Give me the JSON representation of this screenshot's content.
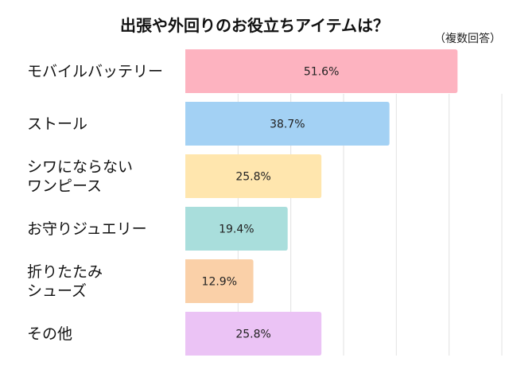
{
  "chart_data": {
    "type": "bar",
    "orientation": "horizontal",
    "title": "出張や外回りのお役立ちアイテムは？",
    "subtitle": "（複数回答）",
    "categories": [
      "モバイルバッテリー",
      "ストール",
      "シワにならない\nワンピース",
      "お守りジュエリー",
      "折りたたみ\nシューズ",
      "その他"
    ],
    "values": [
      51.6,
      38.7,
      25.8,
      19.4,
      12.9,
      25.8
    ],
    "data_labels": [
      "51.6%",
      "38.7%",
      "25.8%",
      "19.4%",
      "12.9%",
      "25.8%"
    ],
    "colors": [
      "#FDB3C0",
      "#A3D1F4",
      "#FFE6AE",
      "#A9DEDC",
      "#FAD0A8",
      "#EBC3F5"
    ],
    "xlim": [
      0,
      60
    ],
    "grid": true,
    "grid_step": 10
  }
}
